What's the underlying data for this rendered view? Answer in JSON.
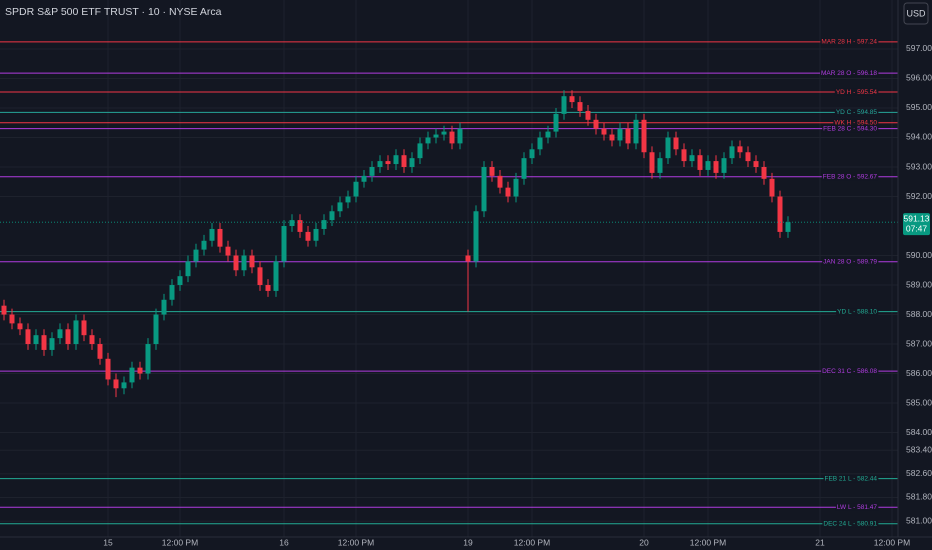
{
  "chart_data": {
    "type": "candlestick",
    "title": "SPDR S&P 500 ETF TRUST · 10 · NYSE Arca",
    "currency": "USD",
    "up_color": "#089981",
    "down_color": "#f23645",
    "grid": true,
    "categories": [
      null,
      null,
      null,
      null,
      null,
      null,
      null,
      null,
      null,
      null,
      null,
      null,
      null,
      "15",
      null,
      null,
      null,
      null,
      null,
      null,
      null,
      null,
      "12:00 PM",
      null,
      null,
      null,
      null,
      null,
      null,
      null,
      null,
      null,
      null,
      null,
      null,
      "16",
      null,
      null,
      null,
      null,
      null,
      null,
      null,
      null,
      "12:00 PM",
      null,
      null,
      null,
      null,
      null,
      null,
      null,
      null,
      null,
      null,
      null,
      null,
      null,
      "19",
      null,
      null,
      null,
      null,
      null,
      null,
      null,
      "12:00 PM",
      null,
      null,
      null,
      null,
      null,
      null,
      null,
      null,
      null,
      null,
      null,
      null,
      null,
      "20",
      null,
      null,
      null,
      null,
      null,
      null,
      null,
      "12:00 PM",
      null,
      null,
      null,
      null,
      null,
      null,
      null,
      null,
      null,
      null,
      null,
      null,
      null,
      "21",
      null,
      null,
      null,
      null,
      null,
      null,
      null,
      null,
      "12:00 PM"
    ],
    "open": [
      588.3,
      588.0,
      587.7,
      587.5,
      587.0,
      587.3,
      586.8,
      587.2,
      587.5,
      587.0,
      587.8,
      587.3,
      587.0,
      586.5,
      585.8,
      585.5,
      585.7,
      586.2,
      586.0,
      587.0,
      588.0,
      588.5,
      589.0,
      589.3,
      589.8,
      590.2,
      590.5,
      590.9,
      590.3,
      590.0,
      589.5,
      590.0,
      589.6,
      589.0,
      588.8,
      589.8,
      591.0,
      591.2,
      590.8,
      590.5,
      590.9,
      591.2,
      591.5,
      591.8,
      592.0,
      592.5,
      592.7,
      593.0,
      593.2,
      593.1,
      593.4,
      593.0,
      593.3,
      593.8,
      594.0,
      594.1,
      594.2,
      593.8,
      590.0,
      589.8,
      591.5,
      593.0,
      592.7,
      592.3,
      592.0,
      592.6,
      593.3,
      593.6,
      594.0,
      594.2,
      594.8,
      595.4,
      595.2,
      594.9,
      594.6,
      594.3,
      594.1,
      593.9,
      594.3,
      593.8,
      594.6,
      593.5,
      592.8,
      593.3,
      594.0,
      593.6,
      593.2,
      593.4,
      592.9,
      593.2,
      592.8,
      593.3,
      593.7,
      593.5,
      593.2,
      593.0,
      592.6,
      592.0,
      590.8,
      null,
      null,
      null,
      null,
      null,
      null,
      null,
      null,
      null,
      null,
      null,
      null,
      null
    ],
    "high": [
      588.5,
      588.2,
      587.9,
      587.7,
      587.5,
      587.5,
      587.4,
      587.7,
      587.7,
      588.0,
      588.0,
      587.5,
      587.2,
      586.7,
      586.0,
      585.9,
      586.4,
      586.4,
      587.2,
      588.2,
      588.7,
      589.2,
      589.5,
      590.0,
      590.4,
      590.7,
      591.1,
      591.1,
      590.5,
      590.2,
      590.2,
      590.2,
      589.8,
      589.2,
      590.0,
      591.2,
      591.4,
      591.4,
      591.0,
      591.1,
      591.4,
      591.7,
      592.0,
      592.2,
      592.7,
      592.9,
      593.2,
      593.4,
      593.4,
      593.6,
      593.6,
      593.5,
      594.0,
      594.2,
      594.3,
      594.4,
      594.4,
      594.5,
      590.2,
      591.7,
      593.2,
      593.2,
      592.9,
      592.5,
      592.8,
      593.5,
      593.8,
      594.2,
      594.4,
      595.0,
      595.6,
      595.6,
      595.4,
      595.1,
      594.8,
      594.5,
      594.3,
      594.5,
      594.5,
      594.8,
      594.8,
      593.7,
      593.5,
      594.2,
      594.2,
      593.8,
      593.6,
      593.6,
      593.4,
      593.4,
      593.5,
      593.9,
      593.9,
      593.7,
      593.4,
      593.2,
      592.8,
      592.2,
      591.33,
      null,
      null,
      null,
      null,
      null,
      null,
      null,
      null,
      null,
      null,
      null,
      null,
      null
    ],
    "low": [
      587.8,
      587.5,
      587.3,
      586.8,
      586.8,
      586.6,
      586.6,
      587.0,
      586.8,
      586.8,
      587.1,
      586.8,
      586.3,
      585.6,
      585.2,
      585.3,
      585.5,
      585.8,
      585.8,
      586.8,
      587.8,
      588.3,
      588.8,
      589.1,
      589.6,
      590.0,
      590.3,
      590.1,
      589.8,
      589.3,
      589.3,
      589.4,
      588.8,
      588.6,
      588.6,
      589.6,
      590.8,
      590.6,
      590.3,
      590.3,
      590.7,
      591.0,
      591.3,
      591.6,
      591.8,
      592.3,
      592.5,
      592.8,
      592.9,
      592.9,
      592.8,
      592.8,
      593.1,
      593.6,
      593.8,
      593.9,
      593.6,
      593.6,
      588.1,
      589.6,
      591.3,
      592.5,
      592.1,
      591.8,
      591.8,
      592.4,
      593.1,
      593.4,
      593.8,
      594.0,
      594.6,
      595.0,
      594.7,
      594.4,
      594.1,
      593.9,
      593.7,
      593.7,
      593.6,
      593.6,
      593.3,
      592.6,
      592.6,
      593.1,
      593.4,
      593.0,
      593.0,
      592.7,
      592.7,
      592.6,
      592.6,
      593.1,
      593.3,
      593.0,
      592.8,
      592.4,
      591.8,
      590.6,
      590.6,
      null,
      null,
      null,
      null,
      null,
      null,
      null,
      null,
      null,
      null,
      null,
      null,
      null
    ],
    "close": [
      588.0,
      587.7,
      587.5,
      587.0,
      587.3,
      586.8,
      587.2,
      587.5,
      587.0,
      587.8,
      587.3,
      587.0,
      586.5,
      585.8,
      585.5,
      585.7,
      586.2,
      586.0,
      587.0,
      588.0,
      588.5,
      589.0,
      589.3,
      589.8,
      590.2,
      590.5,
      590.9,
      590.3,
      590.0,
      589.5,
      590.0,
      589.6,
      589.0,
      588.8,
      589.8,
      591.0,
      591.2,
      590.8,
      590.5,
      590.9,
      591.2,
      591.5,
      591.8,
      592.0,
      592.5,
      592.7,
      593.0,
      593.2,
      593.1,
      593.4,
      593.0,
      593.3,
      593.8,
      594.0,
      594.1,
      594.2,
      593.8,
      594.3,
      589.8,
      591.5,
      593.0,
      592.7,
      592.3,
      592.0,
      592.6,
      593.3,
      593.6,
      594.0,
      594.2,
      594.8,
      595.4,
      595.2,
      594.9,
      594.6,
      594.3,
      594.1,
      593.9,
      594.3,
      593.8,
      594.6,
      593.5,
      592.8,
      593.3,
      594.0,
      593.6,
      593.2,
      593.4,
      592.9,
      593.2,
      592.8,
      593.3,
      593.7,
      593.5,
      593.2,
      593.0,
      592.6,
      592.0,
      590.8,
      591.13,
      null,
      null,
      null,
      null,
      null,
      null,
      null,
      null,
      null,
      null,
      null,
      null,
      null
    ],
    "ylim": [
      580.46,
      598.66
    ],
    "yticks": [
      {
        "value": 597,
        "label": "597.00"
      },
      {
        "value": 596,
        "label": "596.00"
      },
      {
        "value": 595,
        "label": "595.00"
      },
      {
        "value": 594,
        "label": "594.00"
      },
      {
        "value": 593,
        "label": "593.00"
      },
      {
        "value": 592,
        "label": "592.00"
      },
      {
        "value": 590,
        "label": "590.00"
      },
      {
        "value": 589,
        "label": "589.00"
      },
      {
        "value": 588,
        "label": "588.00"
      },
      {
        "value": 587,
        "label": "587.00"
      },
      {
        "value": 586,
        "label": "586.00"
      },
      {
        "value": 585,
        "label": "585.00"
      },
      {
        "value": 584,
        "label": "584.00"
      },
      {
        "value": 583.4,
        "label": "583.40"
      },
      {
        "value": 582.6,
        "label": "582.60"
      },
      {
        "value": 581.8,
        "label": "581.80"
      },
      {
        "value": 581,
        "label": "581.00"
      }
    ],
    "levels": [
      {
        "label": "MAR 28 H - 597.24",
        "value": 597.24,
        "color": "#f23645"
      },
      {
        "label": "MAR 28 O - 596.18",
        "value": 596.18,
        "color": "#b03ce0"
      },
      {
        "label": "YD H - 595.54",
        "value": 595.54,
        "color": "#f23645"
      },
      {
        "label": "YD C - 594.85",
        "value": 594.85,
        "color": "#26a69a"
      },
      {
        "label": "WK H - 594.50",
        "value": 594.5,
        "color": "#f23645"
      },
      {
        "label": "FEB 28 C - 594.30",
        "value": 594.3,
        "color": "#b03ce0"
      },
      {
        "label": "FEB 28 O - 592.67",
        "value": 592.67,
        "color": "#b03ce0"
      },
      {
        "label": "JAN 28 O - 589.79",
        "value": 589.79,
        "color": "#b03ce0"
      },
      {
        "label": "YD L - 588.10",
        "value": 588.1,
        "color": "#22ab94"
      },
      {
        "label": "DEC 31 C - 586.08",
        "value": 586.08,
        "color": "#b03ce0"
      },
      {
        "label": "FEB 21 L - 582.44",
        "value": 582.44,
        "color": "#22ab94"
      },
      {
        "label": "LW L - 581.47",
        "value": 581.47,
        "color": "#b03ce0"
      },
      {
        "label": "DEC 24 L - 580.91",
        "value": 580.91,
        "color": "#22ab94"
      }
    ],
    "last_price": {
      "value": 591.13,
      "countdown": "07:47"
    }
  }
}
